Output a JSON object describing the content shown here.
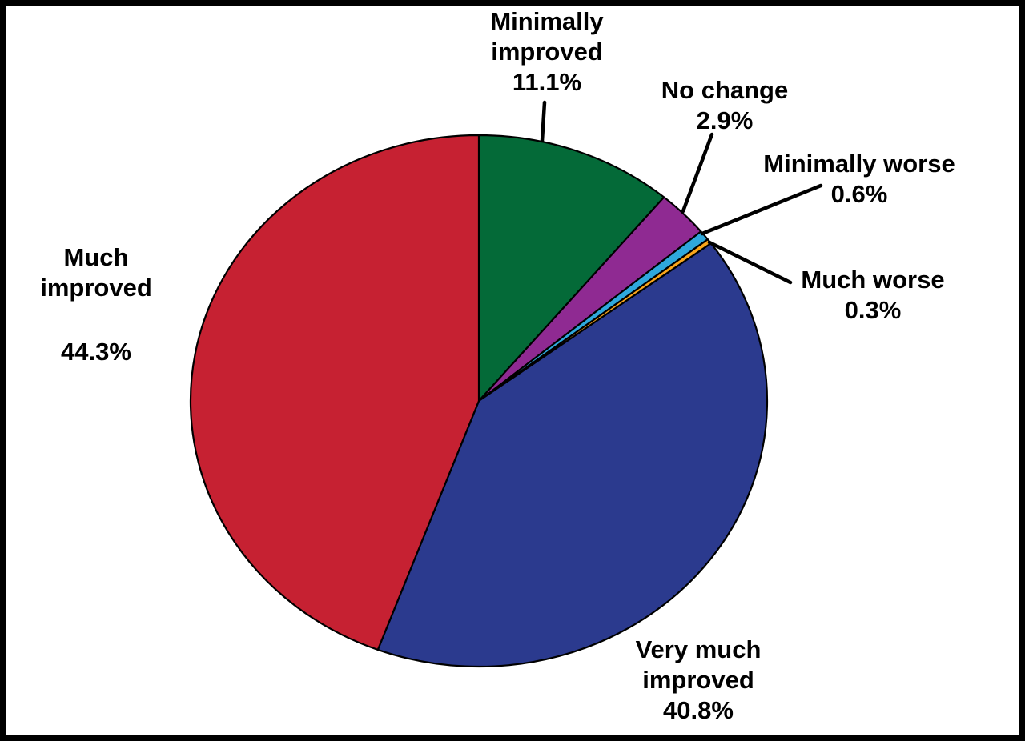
{
  "chart_data": {
    "type": "pie",
    "title": "",
    "start_angle_deg_from_top": 0,
    "direction": "clockwise",
    "legend_position": "none",
    "labels_style": "outside-callouts",
    "slices": [
      {
        "label": "Minimally improved",
        "value": 11.1,
        "percent_label": "11.1%",
        "color": "#046a38"
      },
      {
        "label": "No change",
        "value": 2.9,
        "percent_label": "2.9%",
        "color": "#8f2a92"
      },
      {
        "label": "Minimally worse",
        "value": 0.6,
        "percent_label": "0.6%",
        "color": "#2fa8dc"
      },
      {
        "label": "Much worse",
        "value": 0.3,
        "percent_label": "0.3%",
        "color": "#f9a51b"
      },
      {
        "label": "Very much improved",
        "value": 40.8,
        "percent_label": "40.8%",
        "color": "#2b3a8e"
      },
      {
        "label": "Much improved",
        "value": 44.3,
        "percent_label": "44.3%",
        "color": "#c62132"
      }
    ],
    "outline_color": "#000000"
  }
}
